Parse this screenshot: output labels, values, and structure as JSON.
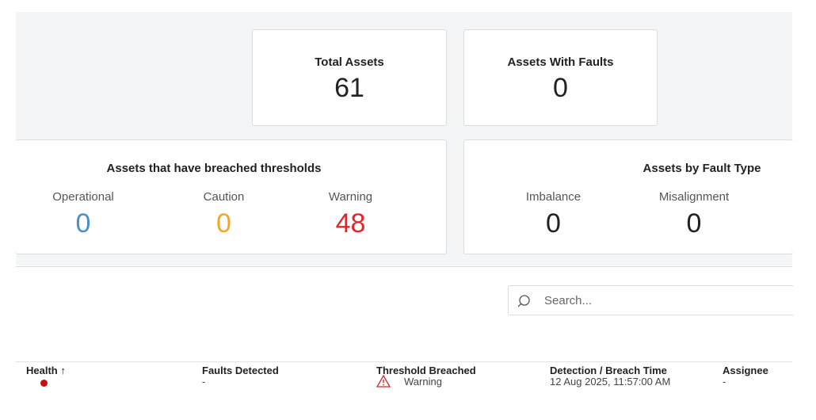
{
  "summary": {
    "total_assets": {
      "label": "Total Assets",
      "value": 61
    },
    "assets_with_faults": {
      "label": "Assets With Faults",
      "value": 0
    }
  },
  "thresholds": {
    "title": "Assets that have breached thresholds",
    "items": [
      {
        "label": "Operational",
        "value": 0
      },
      {
        "label": "Caution",
        "value": 0
      },
      {
        "label": "Warning",
        "value": 48
      }
    ]
  },
  "fault_types": {
    "title": "Assets by Fault Type",
    "items": [
      {
        "label": "Imbalance",
        "value": 0
      },
      {
        "label": "Misalignment",
        "value": 0
      }
    ]
  },
  "search": {
    "placeholder": "Search..."
  },
  "table": {
    "columns": [
      "Health",
      "Faults Detected",
      "Threshold Breached",
      "Detection / Breach Time",
      "Assignee"
    ],
    "rows": [
      {
        "faults_detected": "-",
        "threshold_breached": "Warning",
        "detection_time": "12 Aug 2025, 11:57:00 AM",
        "assignee": "-"
      }
    ]
  }
}
